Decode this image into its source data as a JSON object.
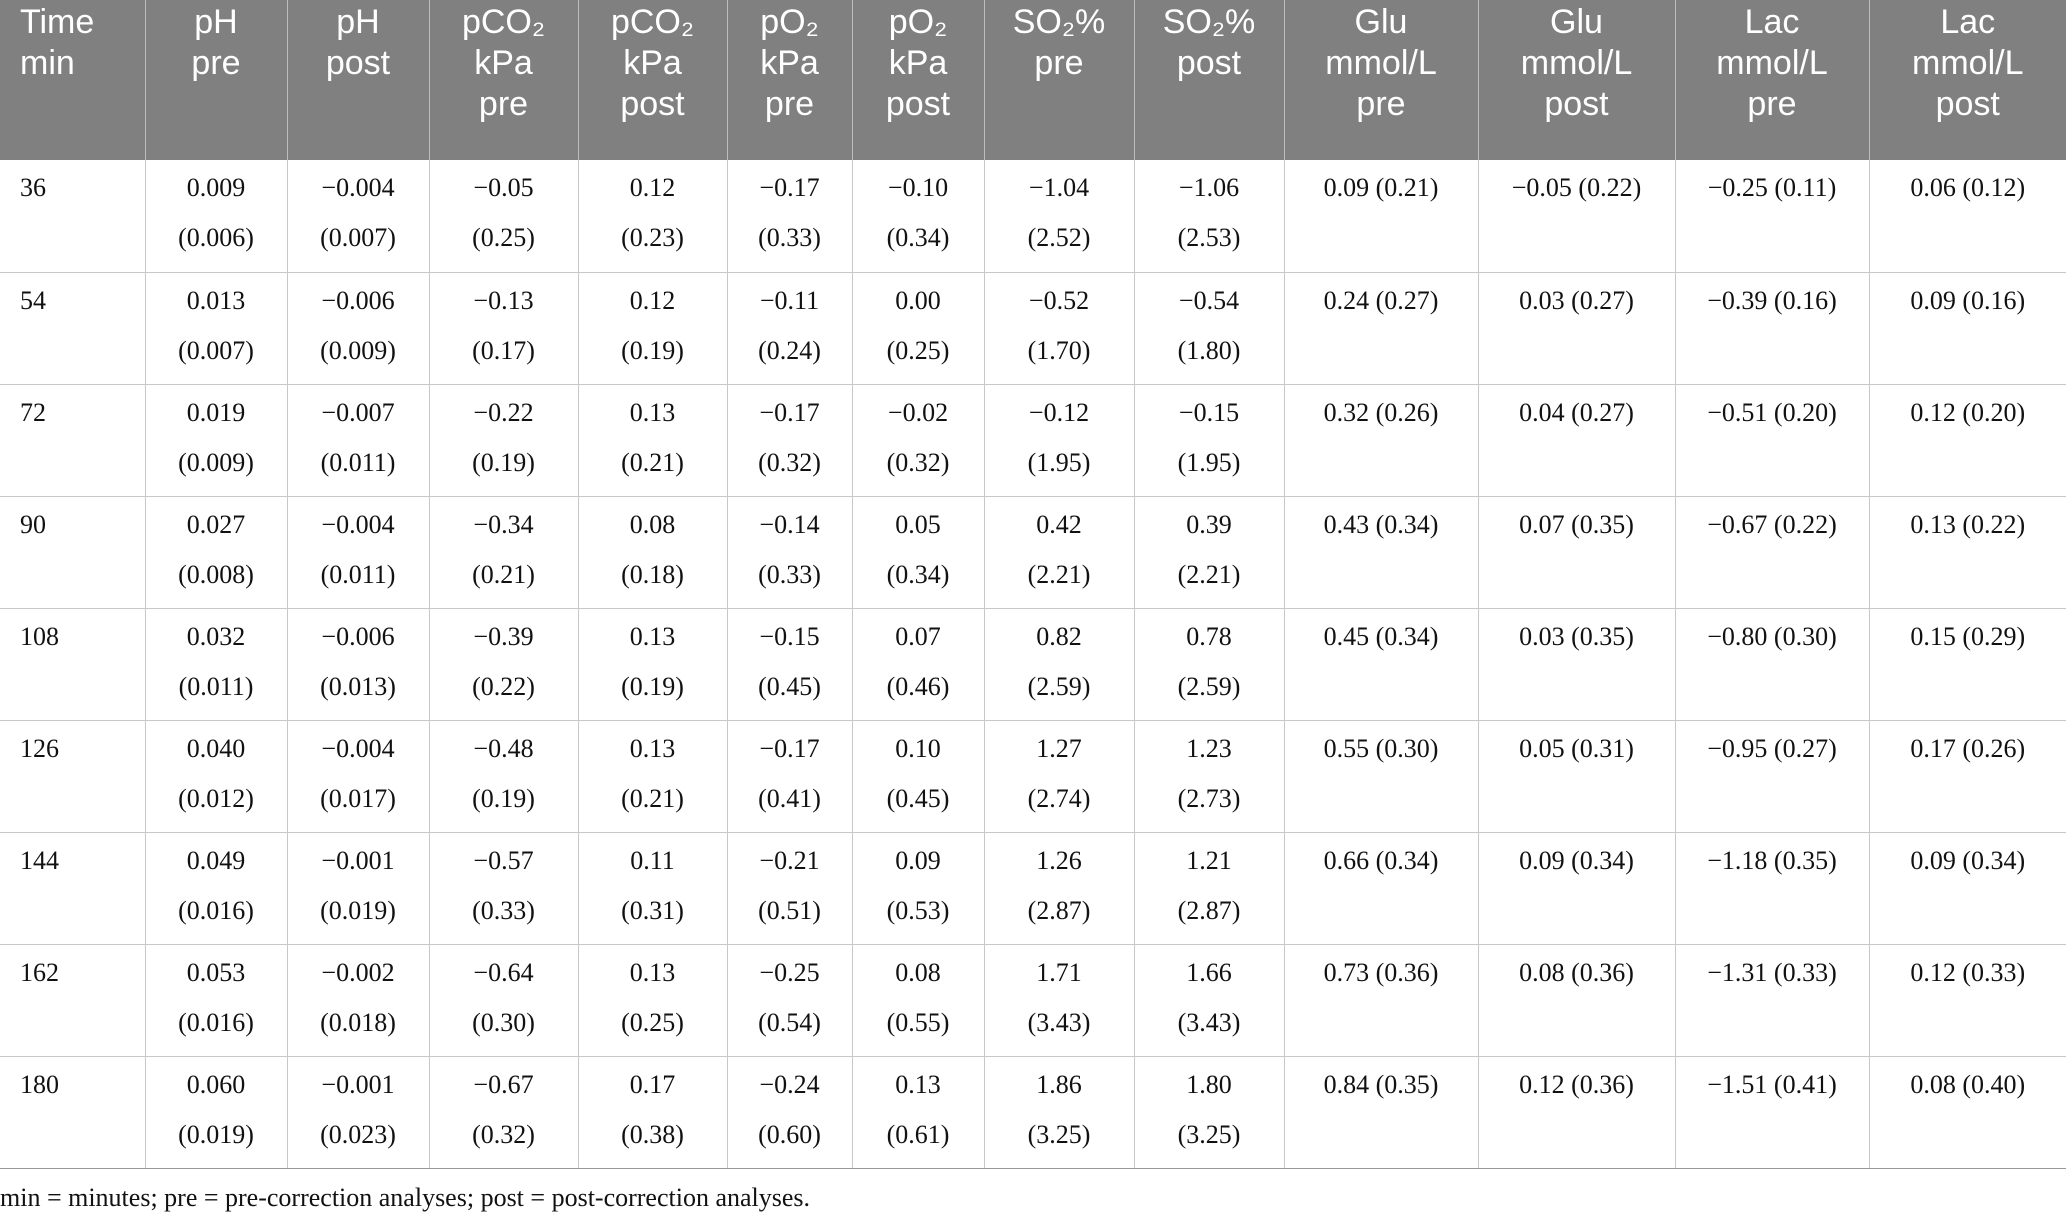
{
  "table": {
    "header": [
      [
        "Time",
        "min"
      ],
      [
        "pH",
        "pre"
      ],
      [
        "pH",
        "post"
      ],
      [
        "pCO₂",
        "kPa",
        "pre"
      ],
      [
        "pCO₂",
        "kPa",
        "post"
      ],
      [
        "pO₂",
        "kPa",
        "pre"
      ],
      [
        "pO₂",
        "kPa",
        "post"
      ],
      [
        "SO₂%",
        "pre"
      ],
      [
        "SO₂%",
        "post"
      ],
      [
        "Glu",
        "mmol/L",
        "pre"
      ],
      [
        "Glu",
        "mmol/L",
        "post"
      ],
      [
        "Lac",
        "mmol/L",
        "pre"
      ],
      [
        "Lac",
        "mmol/L",
        "post"
      ]
    ],
    "rows": [
      [
        "36",
        "0.009 (0.006)",
        "−0.004 (0.007)",
        "−0.05 (0.25)",
        "0.12 (0.23)",
        "−0.17 (0.33)",
        "−0.10 (0.34)",
        "−1.04 (2.52)",
        "−1.06 (2.53)",
        "0.09 (0.21)",
        "−0.05 (0.22)",
        "−0.25 (0.11)",
        "0.06 (0.12)"
      ],
      [
        "54",
        "0.013 (0.007)",
        "−0.006 (0.009)",
        "−0.13 (0.17)",
        "0.12 (0.19)",
        "−0.11 (0.24)",
        "0.00 (0.25)",
        "−0.52 (1.70)",
        "−0.54 (1.80)",
        "0.24 (0.27)",
        "0.03 (0.27)",
        "−0.39 (0.16)",
        "0.09 (0.16)"
      ],
      [
        "72",
        "0.019 (0.009)",
        "−0.007 (0.011)",
        "−0.22 (0.19)",
        "0.13 (0.21)",
        "−0.17 (0.32)",
        "−0.02 (0.32)",
        "−0.12 (1.95)",
        "−0.15 (1.95)",
        "0.32 (0.26)",
        "0.04 (0.27)",
        "−0.51 (0.20)",
        "0.12 (0.20)"
      ],
      [
        "90",
        "0.027 (0.008)",
        "−0.004 (0.011)",
        "−0.34 (0.21)",
        "0.08 (0.18)",
        "−0.14 (0.33)",
        "0.05 (0.34)",
        "0.42 (2.21)",
        "0.39 (2.21)",
        "0.43 (0.34)",
        "0.07 (0.35)",
        "−0.67 (0.22)",
        "0.13 (0.22)"
      ],
      [
        "108",
        "0.032 (0.011)",
        "−0.006 (0.013)",
        "−0.39 (0.22)",
        "0.13 (0.19)",
        "−0.15 (0.45)",
        "0.07 (0.46)",
        "0.82 (2.59)",
        "0.78 (2.59)",
        "0.45 (0.34)",
        "0.03 (0.35)",
        "−0.80 (0.30)",
        "0.15 (0.29)"
      ],
      [
        "126",
        "0.040 (0.012)",
        "−0.004 (0.017)",
        "−0.48 (0.19)",
        "0.13 (0.21)",
        "−0.17 (0.41)",
        "0.10 (0.45)",
        "1.27 (2.74)",
        "1.23 (2.73)",
        "0.55 (0.30)",
        "0.05 (0.31)",
        "−0.95 (0.27)",
        "0.17 (0.26)"
      ],
      [
        "144",
        "0.049 (0.016)",
        "−0.001 (0.019)",
        "−0.57 (0.33)",
        "0.11 (0.31)",
        "−0.21 (0.51)",
        "0.09 (0.53)",
        "1.26 (2.87)",
        "1.21 (2.87)",
        "0.66 (0.34)",
        "0.09 (0.34)",
        "−1.18 (0.35)",
        "0.09 (0.34)"
      ],
      [
        "162",
        "0.053 (0.016)",
        "−0.002 (0.018)",
        "−0.64 (0.30)",
        "0.13 (0.25)",
        "−0.25 (0.54)",
        "0.08 (0.55)",
        "1.71 (3.43)",
        "1.66 (3.43)",
        "0.73 (0.36)",
        "0.08 (0.36)",
        "−1.31 (0.33)",
        "0.12 (0.33)"
      ],
      [
        "180",
        "0.060 (0.019)",
        "−0.001 (0.023)",
        "−0.67 (0.32)",
        "0.17 (0.38)",
        "−0.24 (0.60)",
        "0.13 (0.61)",
        "1.86 (3.25)",
        "1.80 (3.25)",
        "0.84 (0.35)",
        "0.12 (0.36)",
        "−1.51 (0.41)",
        "0.08 (0.40)"
      ]
    ],
    "footnote": "min = minutes; pre = pre-correction analyses; post = post-correction analyses."
  }
}
